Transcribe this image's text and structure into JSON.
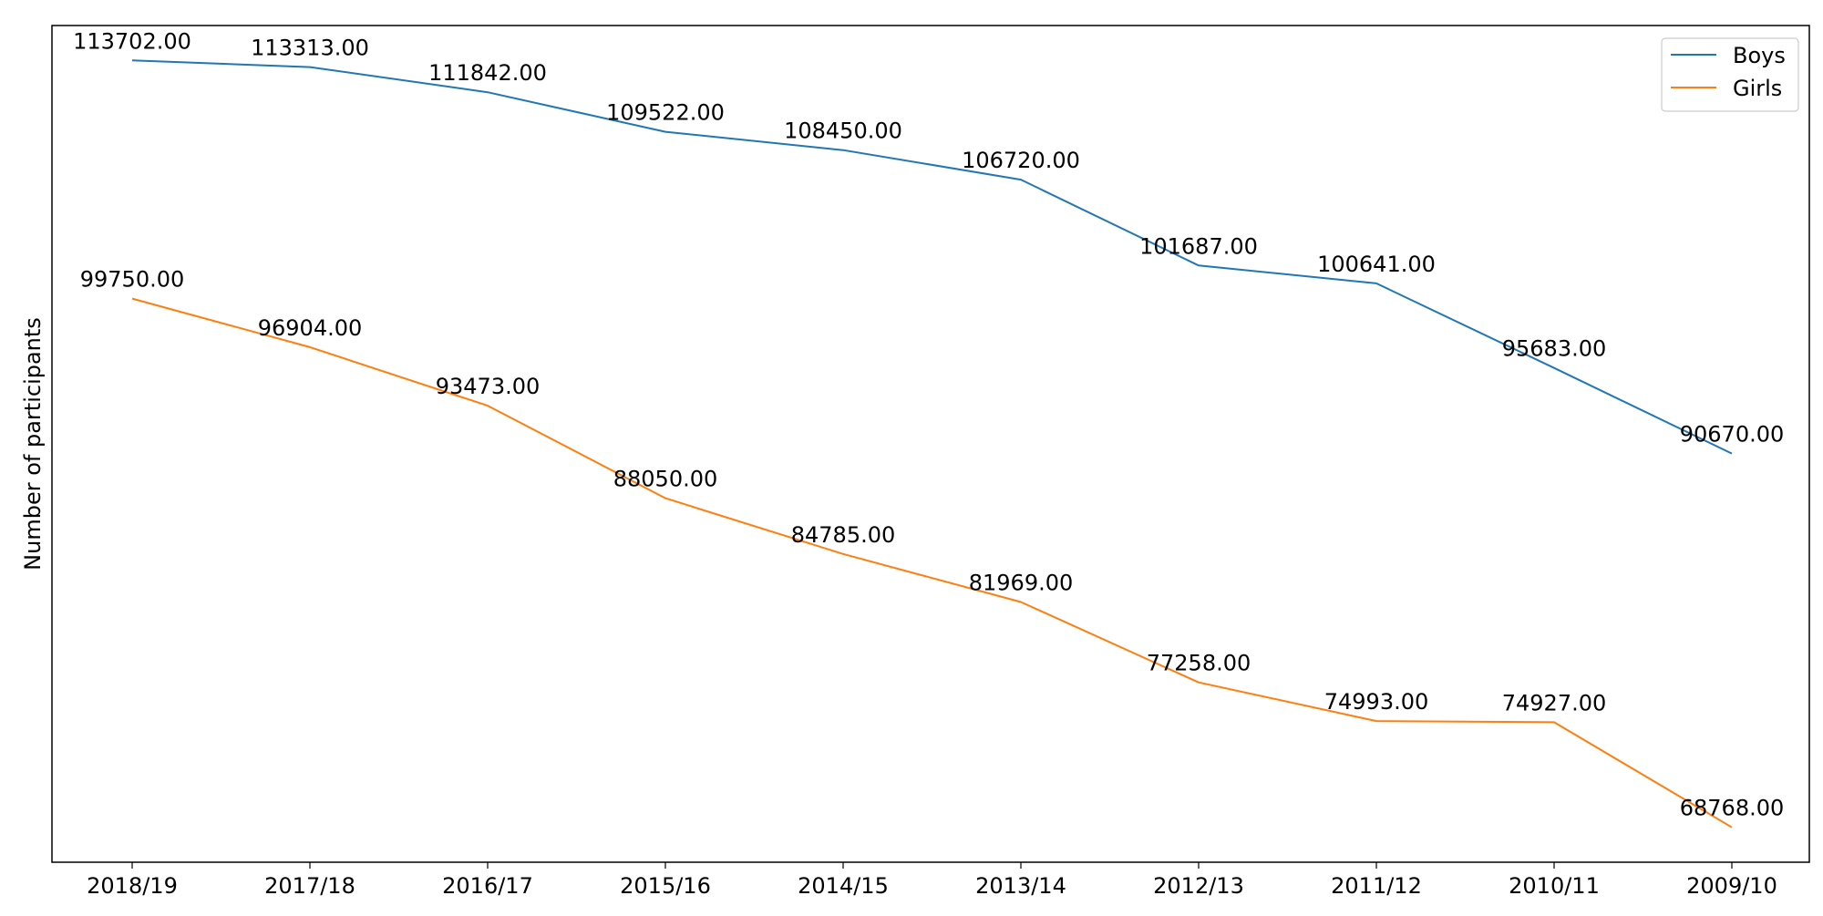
{
  "chart_data": {
    "type": "line",
    "title": "",
    "xlabel": "",
    "ylabel": "Number of participants",
    "categories": [
      "2018/19",
      "2017/18",
      "2016/17",
      "2015/16",
      "2014/15",
      "2013/14",
      "2012/13",
      "2011/12",
      "2010/11",
      "2009/10"
    ],
    "series": [
      {
        "name": "Boys",
        "color": "#1f77b4",
        "values": [
          113702,
          113313,
          111842,
          109522,
          108450,
          106720,
          101687,
          100641,
          95683,
          90670
        ],
        "labels": [
          "113702.00",
          "113313.00",
          "111842.00",
          "109522.00",
          "108450.00",
          "106720.00",
          "101687.00",
          "100641.00",
          "95683.00",
          "90670.00"
        ]
      },
      {
        "name": "Girls",
        "color": "#ff7f0e",
        "values": [
          99750,
          96904,
          93473,
          88050,
          84785,
          81969,
          77258,
          74993,
          74927,
          68768
        ],
        "labels": [
          "99750.00",
          "96904.00",
          "93473.00",
          "88050.00",
          "84785.00",
          "81969.00",
          "77258.00",
          "74993.00",
          "74927.00",
          "68768.00"
        ]
      }
    ],
    "ylim": [
      66721,
      115749
    ],
    "y_ticks_shown": false,
    "grid": false,
    "legend": {
      "position": "top-right"
    }
  }
}
